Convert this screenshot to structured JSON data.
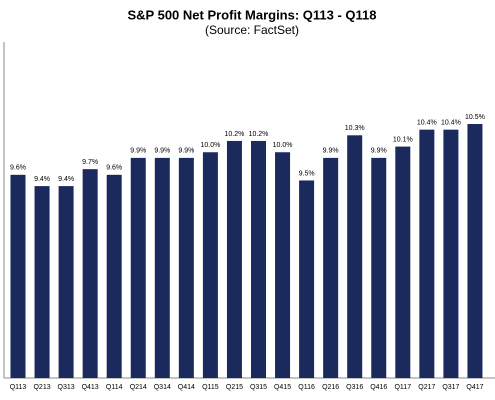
{
  "chart_data": {
    "type": "bar",
    "title": "S&P 500 Net Profit Margins: Q113 - Q118",
    "subtitle": "(Source: FactSet)",
    "categories": [
      "Q113",
      "Q213",
      "Q313",
      "Q413",
      "Q114",
      "Q214",
      "Q314",
      "Q414",
      "Q115",
      "Q215",
      "Q315",
      "Q415",
      "Q116",
      "Q216",
      "Q316",
      "Q416",
      "Q117",
      "Q217",
      "Q317",
      "Q417"
    ],
    "values": [
      9.6,
      9.4,
      9.4,
      9.7,
      9.6,
      9.9,
      9.9,
      9.9,
      10.0,
      10.2,
      10.2,
      10.0,
      9.5,
      9.9,
      10.3,
      9.9,
      10.1,
      10.4,
      10.4,
      10.5
    ],
    "value_labels": [
      "9.6%",
      "9.4%",
      "9.4%",
      "9.7%",
      "9.6%",
      "9.9%",
      "9.9%",
      "9.9%",
      "10.0%",
      "10.2%",
      "10.2%",
      "10.0%",
      "9.5%",
      "9.9%",
      "10.3%",
      "9.9%",
      "10.1%",
      "10.4%",
      "10.4%",
      "10.5%"
    ],
    "color": "#1b2a5c",
    "ylim": [
      6,
      11.9
    ]
  }
}
